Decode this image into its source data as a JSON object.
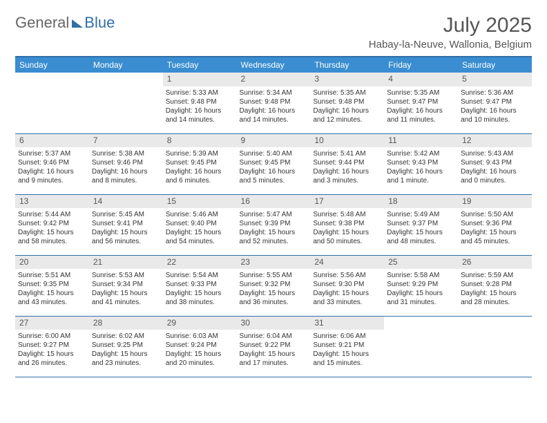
{
  "brand": {
    "part1": "General",
    "part2": "Blue"
  },
  "title": "July 2025",
  "location": "Habay-la-Neuve, Wallonia, Belgium",
  "colors": {
    "header_bg": "#3a8dd0",
    "rule": "#2f6fa8",
    "daynum_bg": "#e9e9e9",
    "text": "#333333",
    "title_text": "#555555"
  },
  "weekdays": [
    "Sunday",
    "Monday",
    "Tuesday",
    "Wednesday",
    "Thursday",
    "Friday",
    "Saturday"
  ],
  "weeks": [
    [
      {
        "day": "",
        "sunrise": "",
        "sunset": "",
        "daylight": ""
      },
      {
        "day": "",
        "sunrise": "",
        "sunset": "",
        "daylight": ""
      },
      {
        "day": "1",
        "sunrise": "Sunrise: 5:33 AM",
        "sunset": "Sunset: 9:48 PM",
        "daylight": "Daylight: 16 hours and 14 minutes."
      },
      {
        "day": "2",
        "sunrise": "Sunrise: 5:34 AM",
        "sunset": "Sunset: 9:48 PM",
        "daylight": "Daylight: 16 hours and 14 minutes."
      },
      {
        "day": "3",
        "sunrise": "Sunrise: 5:35 AM",
        "sunset": "Sunset: 9:48 PM",
        "daylight": "Daylight: 16 hours and 12 minutes."
      },
      {
        "day": "4",
        "sunrise": "Sunrise: 5:35 AM",
        "sunset": "Sunset: 9:47 PM",
        "daylight": "Daylight: 16 hours and 11 minutes."
      },
      {
        "day": "5",
        "sunrise": "Sunrise: 5:36 AM",
        "sunset": "Sunset: 9:47 PM",
        "daylight": "Daylight: 16 hours and 10 minutes."
      }
    ],
    [
      {
        "day": "6",
        "sunrise": "Sunrise: 5:37 AM",
        "sunset": "Sunset: 9:46 PM",
        "daylight": "Daylight: 16 hours and 9 minutes."
      },
      {
        "day": "7",
        "sunrise": "Sunrise: 5:38 AM",
        "sunset": "Sunset: 9:46 PM",
        "daylight": "Daylight: 16 hours and 8 minutes."
      },
      {
        "day": "8",
        "sunrise": "Sunrise: 5:39 AM",
        "sunset": "Sunset: 9:45 PM",
        "daylight": "Daylight: 16 hours and 6 minutes."
      },
      {
        "day": "9",
        "sunrise": "Sunrise: 5:40 AM",
        "sunset": "Sunset: 9:45 PM",
        "daylight": "Daylight: 16 hours and 5 minutes."
      },
      {
        "day": "10",
        "sunrise": "Sunrise: 5:41 AM",
        "sunset": "Sunset: 9:44 PM",
        "daylight": "Daylight: 16 hours and 3 minutes."
      },
      {
        "day": "11",
        "sunrise": "Sunrise: 5:42 AM",
        "sunset": "Sunset: 9:43 PM",
        "daylight": "Daylight: 16 hours and 1 minute."
      },
      {
        "day": "12",
        "sunrise": "Sunrise: 5:43 AM",
        "sunset": "Sunset: 9:43 PM",
        "daylight": "Daylight: 16 hours and 0 minutes."
      }
    ],
    [
      {
        "day": "13",
        "sunrise": "Sunrise: 5:44 AM",
        "sunset": "Sunset: 9:42 PM",
        "daylight": "Daylight: 15 hours and 58 minutes."
      },
      {
        "day": "14",
        "sunrise": "Sunrise: 5:45 AM",
        "sunset": "Sunset: 9:41 PM",
        "daylight": "Daylight: 15 hours and 56 minutes."
      },
      {
        "day": "15",
        "sunrise": "Sunrise: 5:46 AM",
        "sunset": "Sunset: 9:40 PM",
        "daylight": "Daylight: 15 hours and 54 minutes."
      },
      {
        "day": "16",
        "sunrise": "Sunrise: 5:47 AM",
        "sunset": "Sunset: 9:39 PM",
        "daylight": "Daylight: 15 hours and 52 minutes."
      },
      {
        "day": "17",
        "sunrise": "Sunrise: 5:48 AM",
        "sunset": "Sunset: 9:38 PM",
        "daylight": "Daylight: 15 hours and 50 minutes."
      },
      {
        "day": "18",
        "sunrise": "Sunrise: 5:49 AM",
        "sunset": "Sunset: 9:37 PM",
        "daylight": "Daylight: 15 hours and 48 minutes."
      },
      {
        "day": "19",
        "sunrise": "Sunrise: 5:50 AM",
        "sunset": "Sunset: 9:36 PM",
        "daylight": "Daylight: 15 hours and 45 minutes."
      }
    ],
    [
      {
        "day": "20",
        "sunrise": "Sunrise: 5:51 AM",
        "sunset": "Sunset: 9:35 PM",
        "daylight": "Daylight: 15 hours and 43 minutes."
      },
      {
        "day": "21",
        "sunrise": "Sunrise: 5:53 AM",
        "sunset": "Sunset: 9:34 PM",
        "daylight": "Daylight: 15 hours and 41 minutes."
      },
      {
        "day": "22",
        "sunrise": "Sunrise: 5:54 AM",
        "sunset": "Sunset: 9:33 PM",
        "daylight": "Daylight: 15 hours and 38 minutes."
      },
      {
        "day": "23",
        "sunrise": "Sunrise: 5:55 AM",
        "sunset": "Sunset: 9:32 PM",
        "daylight": "Daylight: 15 hours and 36 minutes."
      },
      {
        "day": "24",
        "sunrise": "Sunrise: 5:56 AM",
        "sunset": "Sunset: 9:30 PM",
        "daylight": "Daylight: 15 hours and 33 minutes."
      },
      {
        "day": "25",
        "sunrise": "Sunrise: 5:58 AM",
        "sunset": "Sunset: 9:29 PM",
        "daylight": "Daylight: 15 hours and 31 minutes."
      },
      {
        "day": "26",
        "sunrise": "Sunrise: 5:59 AM",
        "sunset": "Sunset: 9:28 PM",
        "daylight": "Daylight: 15 hours and 28 minutes."
      }
    ],
    [
      {
        "day": "27",
        "sunrise": "Sunrise: 6:00 AM",
        "sunset": "Sunset: 9:27 PM",
        "daylight": "Daylight: 15 hours and 26 minutes."
      },
      {
        "day": "28",
        "sunrise": "Sunrise: 6:02 AM",
        "sunset": "Sunset: 9:25 PM",
        "daylight": "Daylight: 15 hours and 23 minutes."
      },
      {
        "day": "29",
        "sunrise": "Sunrise: 6:03 AM",
        "sunset": "Sunset: 9:24 PM",
        "daylight": "Daylight: 15 hours and 20 minutes."
      },
      {
        "day": "30",
        "sunrise": "Sunrise: 6:04 AM",
        "sunset": "Sunset: 9:22 PM",
        "daylight": "Daylight: 15 hours and 17 minutes."
      },
      {
        "day": "31",
        "sunrise": "Sunrise: 6:06 AM",
        "sunset": "Sunset: 9:21 PM",
        "daylight": "Daylight: 15 hours and 15 minutes."
      },
      {
        "day": "",
        "sunrise": "",
        "sunset": "",
        "daylight": ""
      },
      {
        "day": "",
        "sunrise": "",
        "sunset": "",
        "daylight": ""
      }
    ]
  ]
}
